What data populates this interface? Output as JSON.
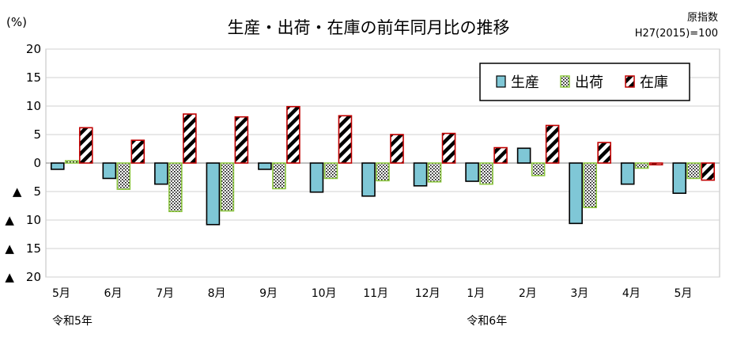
{
  "chart_data": {
    "type": "bar",
    "title": "生産・出荷・在庫の前年同月比の推移",
    "unit_label": "(%)",
    "note_lines": [
      "原指数",
      "H27(2015)=100"
    ],
    "categories": [
      "5月",
      "6月",
      "7月",
      "8月",
      "9月",
      "10月",
      "11月",
      "12月",
      "1月",
      "2月",
      "3月",
      "4月",
      "5月"
    ],
    "era_labels": [
      {
        "index": 0,
        "text": "令和5年"
      },
      {
        "index": 8,
        "text": "令和6年"
      }
    ],
    "ylim": [
      -20,
      20
    ],
    "y_ticks": [
      {
        "value": 20,
        "label": "20"
      },
      {
        "value": 15,
        "label": "15"
      },
      {
        "value": 10,
        "label": "10"
      },
      {
        "value": 5,
        "label": "5"
      },
      {
        "value": 0,
        "label": "0"
      },
      {
        "value": -5,
        "label": "▲　5"
      },
      {
        "value": -10,
        "label": "▲　10"
      },
      {
        "value": -15,
        "label": "▲　15"
      },
      {
        "value": -20,
        "label": "▲　20"
      }
    ],
    "grid": true,
    "legend_position": "top-right",
    "series": [
      {
        "name": "生産",
        "color": "#7fc7d6",
        "pattern": "solid",
        "values": [
          -1.1,
          -2.7,
          -3.7,
          -10.8,
          -1.1,
          -5.1,
          -5.8,
          -4.0,
          -3.2,
          2.6,
          -10.6,
          -3.7,
          -5.3
        ]
      },
      {
        "name": "出荷",
        "color": "#8cc63f",
        "pattern": "dots",
        "values": [
          0.4,
          -4.6,
          -8.5,
          -8.4,
          -4.5,
          -2.7,
          -3.1,
          -3.3,
          -3.7,
          -2.2,
          -7.8,
          -0.9,
          -2.7
        ]
      },
      {
        "name": "在庫",
        "color": "#c00000",
        "pattern": "stripes",
        "values": [
          6.2,
          4.0,
          8.6,
          8.1,
          9.9,
          8.3,
          5.0,
          5.2,
          2.7,
          6.6,
          3.6,
          -0.3,
          -3.0
        ]
      }
    ]
  }
}
